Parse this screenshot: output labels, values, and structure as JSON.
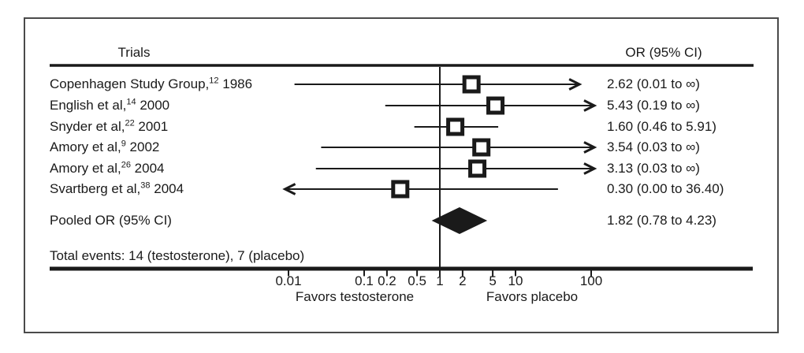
{
  "chart_data": {
    "type": "scatter",
    "subtype": "forest-plot",
    "column_headers": {
      "trials": "Trials",
      "or_ci": "OR (95% CI)"
    },
    "rows": [
      {
        "trial": "Copenhagen Study Group,",
        "ref": "12",
        "year": "1986",
        "or": 2.62,
        "ci_low": "0.01",
        "ci_high": "∞",
        "or_ci_text": "2.62 (0.01 to ∞)",
        "plot_low": 0.012,
        "plot_high": 70,
        "arrow": "right"
      },
      {
        "trial": "English et al,",
        "ref": "14",
        "year": "2000",
        "or": 5.43,
        "ci_low": "0.19",
        "ci_high": "∞",
        "or_ci_text": "5.43 (0.19 to ∞)",
        "plot_low": 0.19,
        "plot_high": 110,
        "arrow": "right"
      },
      {
        "trial": "Snyder et al,",
        "ref": "22",
        "year": "2001",
        "or": 1.6,
        "ci_low": "0.46",
        "ci_high": "5.91",
        "or_ci_text": "1.60 (0.46 to 5.91)",
        "plot_low": 0.46,
        "plot_high": 5.91,
        "arrow": null
      },
      {
        "trial": "Amory et al,",
        "ref": "9",
        "year": "2002",
        "or": 3.54,
        "ci_low": "0.03",
        "ci_high": "∞",
        "or_ci_text": "3.54 (0.03 to ∞)",
        "plot_low": 0.027,
        "plot_high": 110,
        "arrow": "right"
      },
      {
        "trial": "Amory et al,",
        "ref": "26",
        "year": "2004",
        "or": 3.13,
        "ci_low": "0.03",
        "ci_high": "∞",
        "or_ci_text": "3.13 (0.03 to ∞)",
        "plot_low": 0.023,
        "plot_high": 110,
        "arrow": "right"
      },
      {
        "trial": "Svartberg et al,",
        "ref": "38",
        "year": "2004",
        "or": 0.3,
        "ci_low": "0.00",
        "ci_high": "36.40",
        "or_ci_text": "0.30 (0.00 to 36.40)",
        "plot_low": 0.009,
        "plot_high": 36.4,
        "arrow": "left"
      }
    ],
    "pooled": {
      "label": "Pooled OR (95% CI)",
      "or": 1.82,
      "ci_low": 0.78,
      "ci_high": 4.23,
      "or_ci_text": "1.82 (0.78 to 4.23)"
    },
    "total_events": "Total events: 14 (testosterone), 7 (placebo)",
    "x_axis": {
      "scale": "log10",
      "reference_line": 1,
      "ticks": [
        {
          "value": 0.01,
          "label": "0.01"
        },
        {
          "value": 0.1,
          "label": "0.1"
        },
        {
          "value": 0.2,
          "label": "0.2"
        },
        {
          "value": 0.5,
          "label": "0.5"
        },
        {
          "value": 1,
          "label": "1"
        },
        {
          "value": 2,
          "label": "2"
        },
        {
          "value": 5,
          "label": "5"
        },
        {
          "value": 10,
          "label": "10"
        },
        {
          "value": 100,
          "label": "100"
        }
      ],
      "left_direction_label": "Favors testosterone",
      "right_direction_label": "Favors placebo"
    },
    "colors": {
      "ink": "#1a1a1a",
      "frame_border": "#4a4a4a",
      "background": "#ffffff"
    }
  }
}
